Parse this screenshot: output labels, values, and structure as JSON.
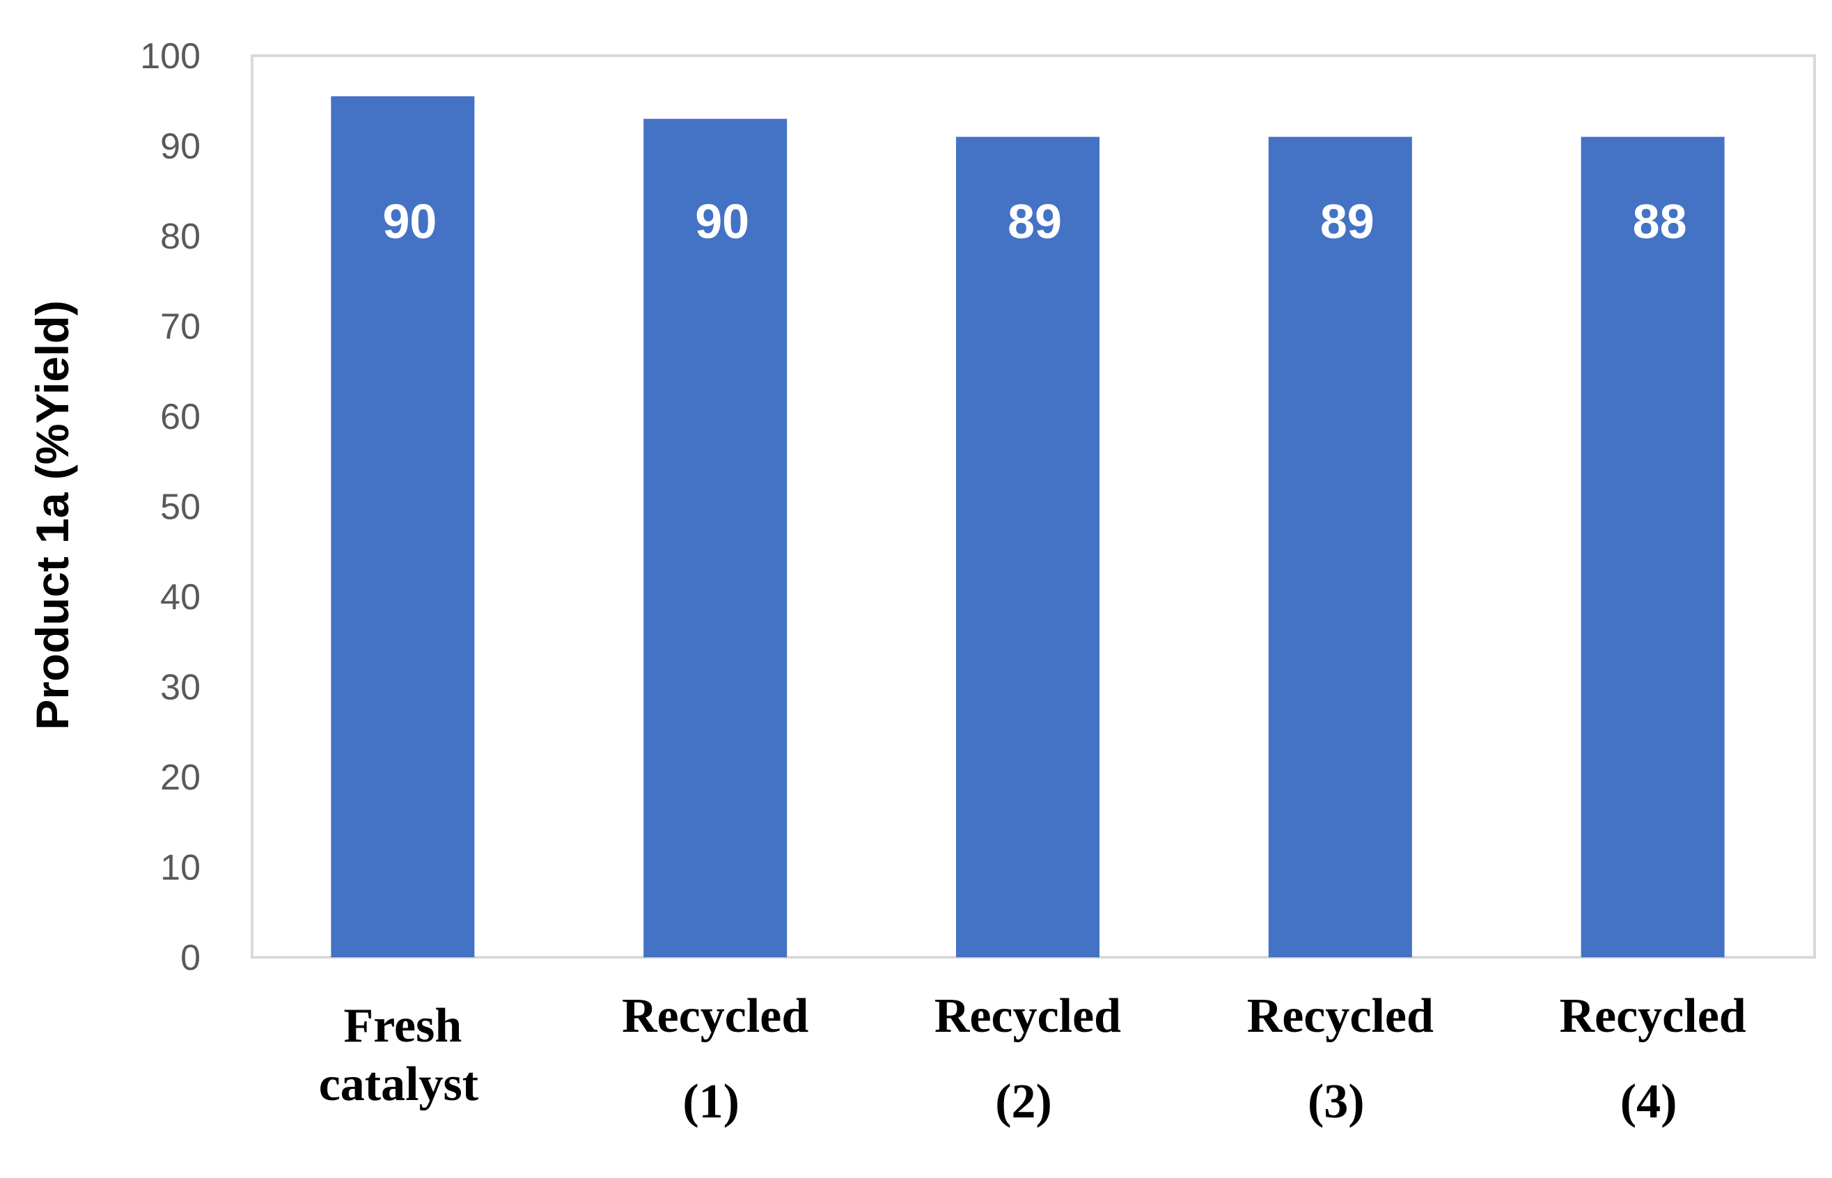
{
  "chart_data": {
    "type": "bar",
    "categories": [
      [
        "Fresh",
        "catalyst"
      ],
      [
        "Recycled",
        "(1)"
      ],
      [
        "Recycled",
        "(2)"
      ],
      [
        "Recycled",
        "(3)"
      ],
      [
        "Recycled",
        "(4)"
      ]
    ],
    "values": [
      95.5,
      93,
      91,
      91,
      91
    ],
    "data_labels": [
      "90",
      "90",
      "89",
      "89",
      "88"
    ],
    "ylabel": "Product 1a (%Yield)",
    "ylim": [
      0,
      100
    ],
    "yticks": [
      "0",
      "10",
      "20",
      "30",
      "40",
      "50",
      "60",
      "70",
      "80",
      "90",
      "100"
    ],
    "grid": false,
    "legend": "none",
    "colors": {
      "bar": "#4472C4",
      "axis": "#D9D9D9",
      "tick_text": "#595959",
      "data_label": "#FFFFFF"
    }
  }
}
